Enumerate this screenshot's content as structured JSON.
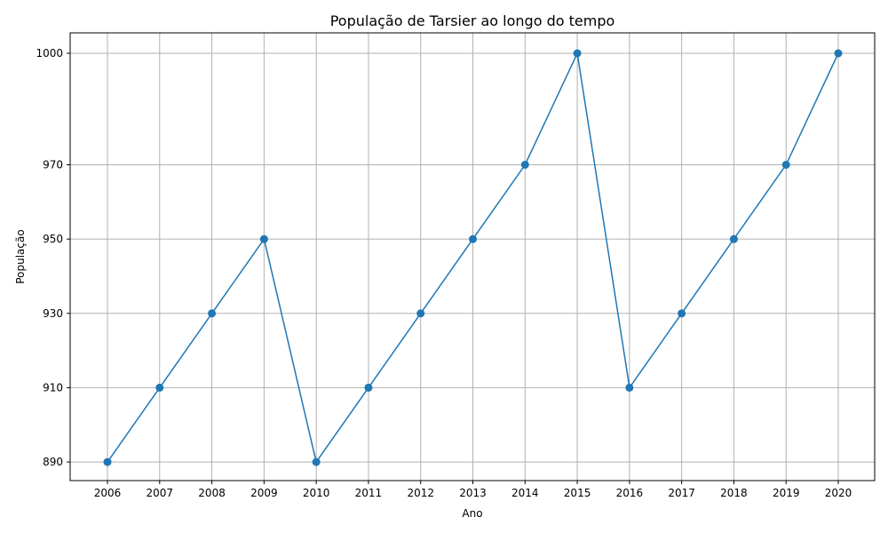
{
  "chart_data": {
    "type": "line",
    "title": "População de Tarsier ao longo do tempo",
    "xlabel": "Ano",
    "ylabel": "População",
    "x": [
      "2006",
      "2007",
      "2008",
      "2009",
      "2010",
      "2011",
      "2012",
      "2013",
      "2014",
      "2015",
      "2016",
      "2017",
      "2018",
      "2019",
      "2020"
    ],
    "series": [
      {
        "values": [
          890,
          910,
          930,
          950,
          890,
          910,
          930,
          950,
          970,
          1000,
          910,
          930,
          950,
          970,
          1000
        ]
      }
    ],
    "yticks": [
      890,
      910,
      930,
      950,
      970,
      1000
    ],
    "ylim": [
      885,
      1005.5
    ],
    "grid": true,
    "legend": "none",
    "color": "#1f77b4"
  }
}
